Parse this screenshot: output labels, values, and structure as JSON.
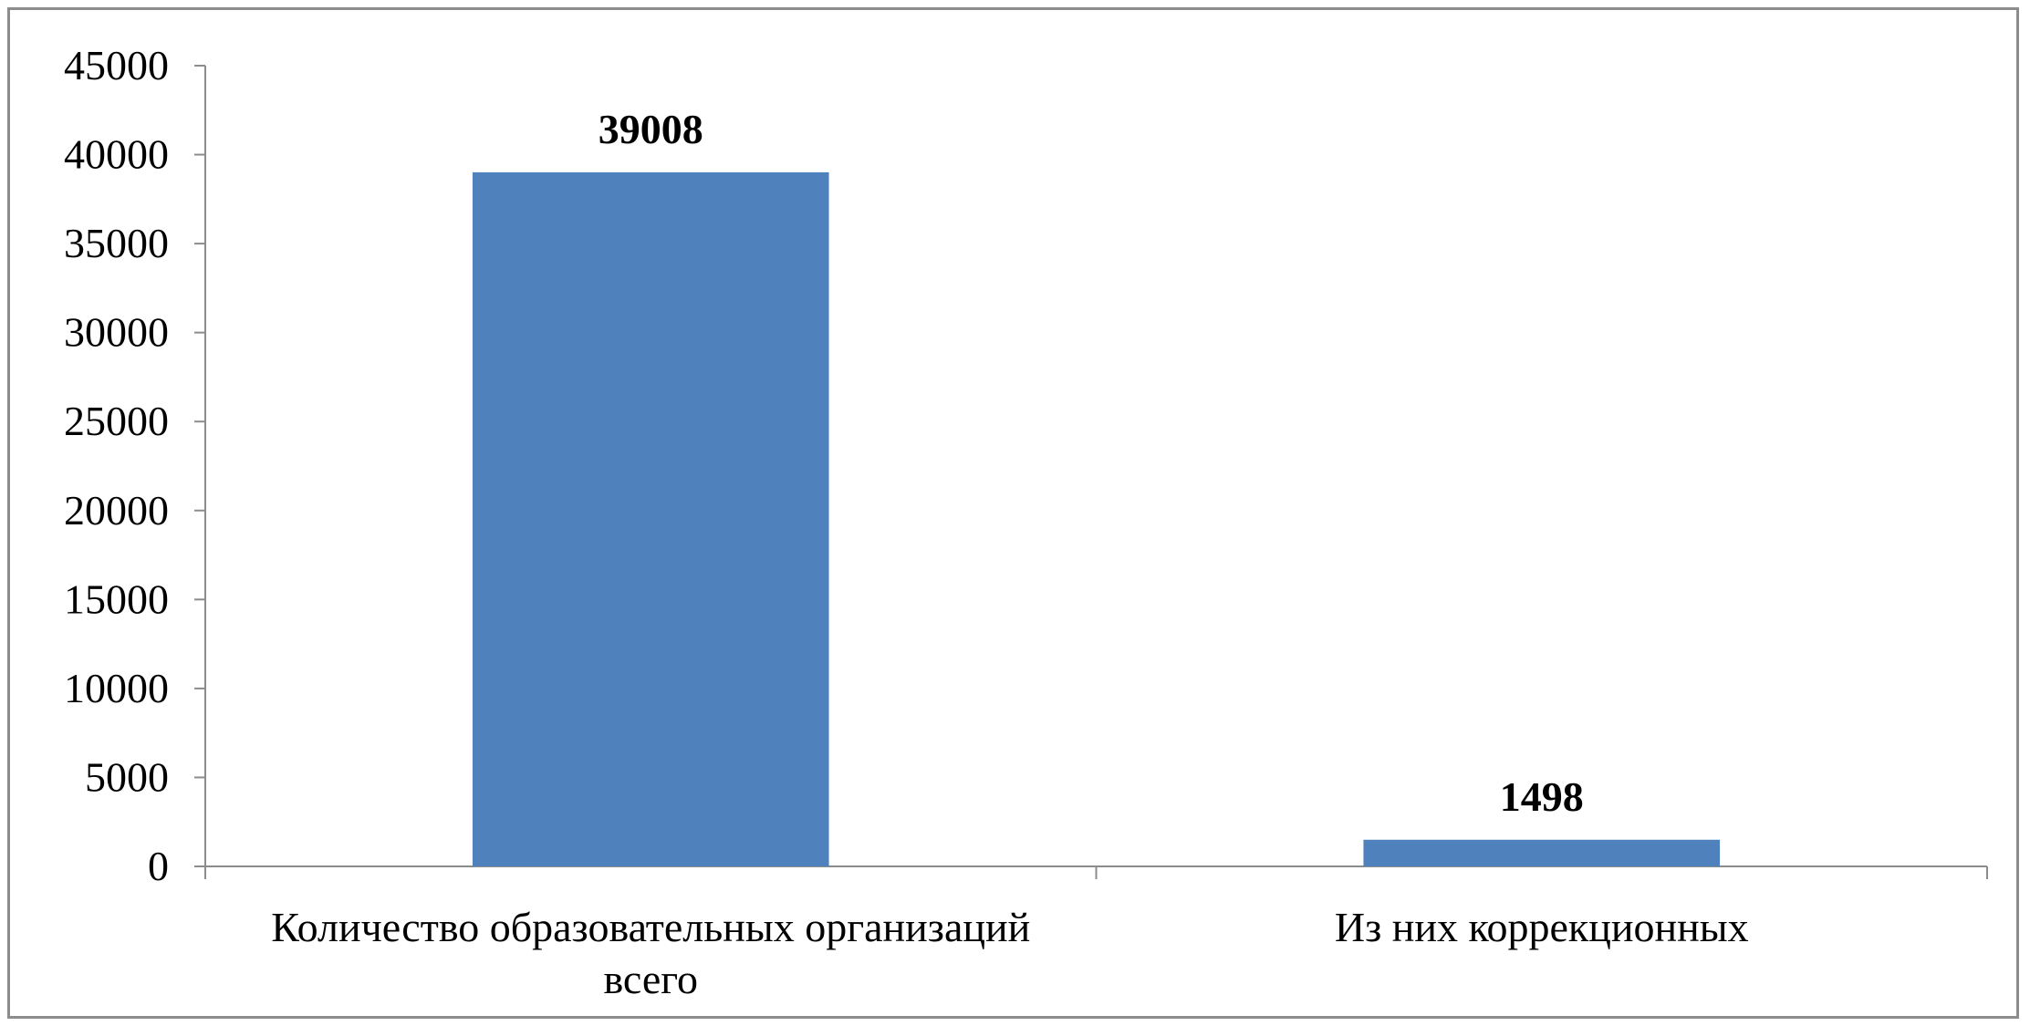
{
  "chart_data": {
    "type": "bar",
    "categories": [
      [
        "Количество образовательных организаций",
        "всего"
      ],
      [
        "Из них коррекционных"
      ]
    ],
    "values": [
      39008,
      1498
    ],
    "data_labels": [
      "39008",
      "1498"
    ],
    "ylim": [
      0,
      45000
    ],
    "yticks": [
      0,
      5000,
      10000,
      15000,
      20000,
      25000,
      30000,
      35000,
      40000,
      45000
    ],
    "ytick_labels": [
      "0",
      "5000",
      "10000",
      "15000",
      "20000",
      "25000",
      "30000",
      "35000",
      "40000",
      "45000"
    ],
    "grid": false,
    "legend": "none",
    "colors": {
      "bar": "#4f81bd",
      "axis": "#8c8c8c",
      "border": "#8c8c8c",
      "text": "#000000"
    }
  }
}
